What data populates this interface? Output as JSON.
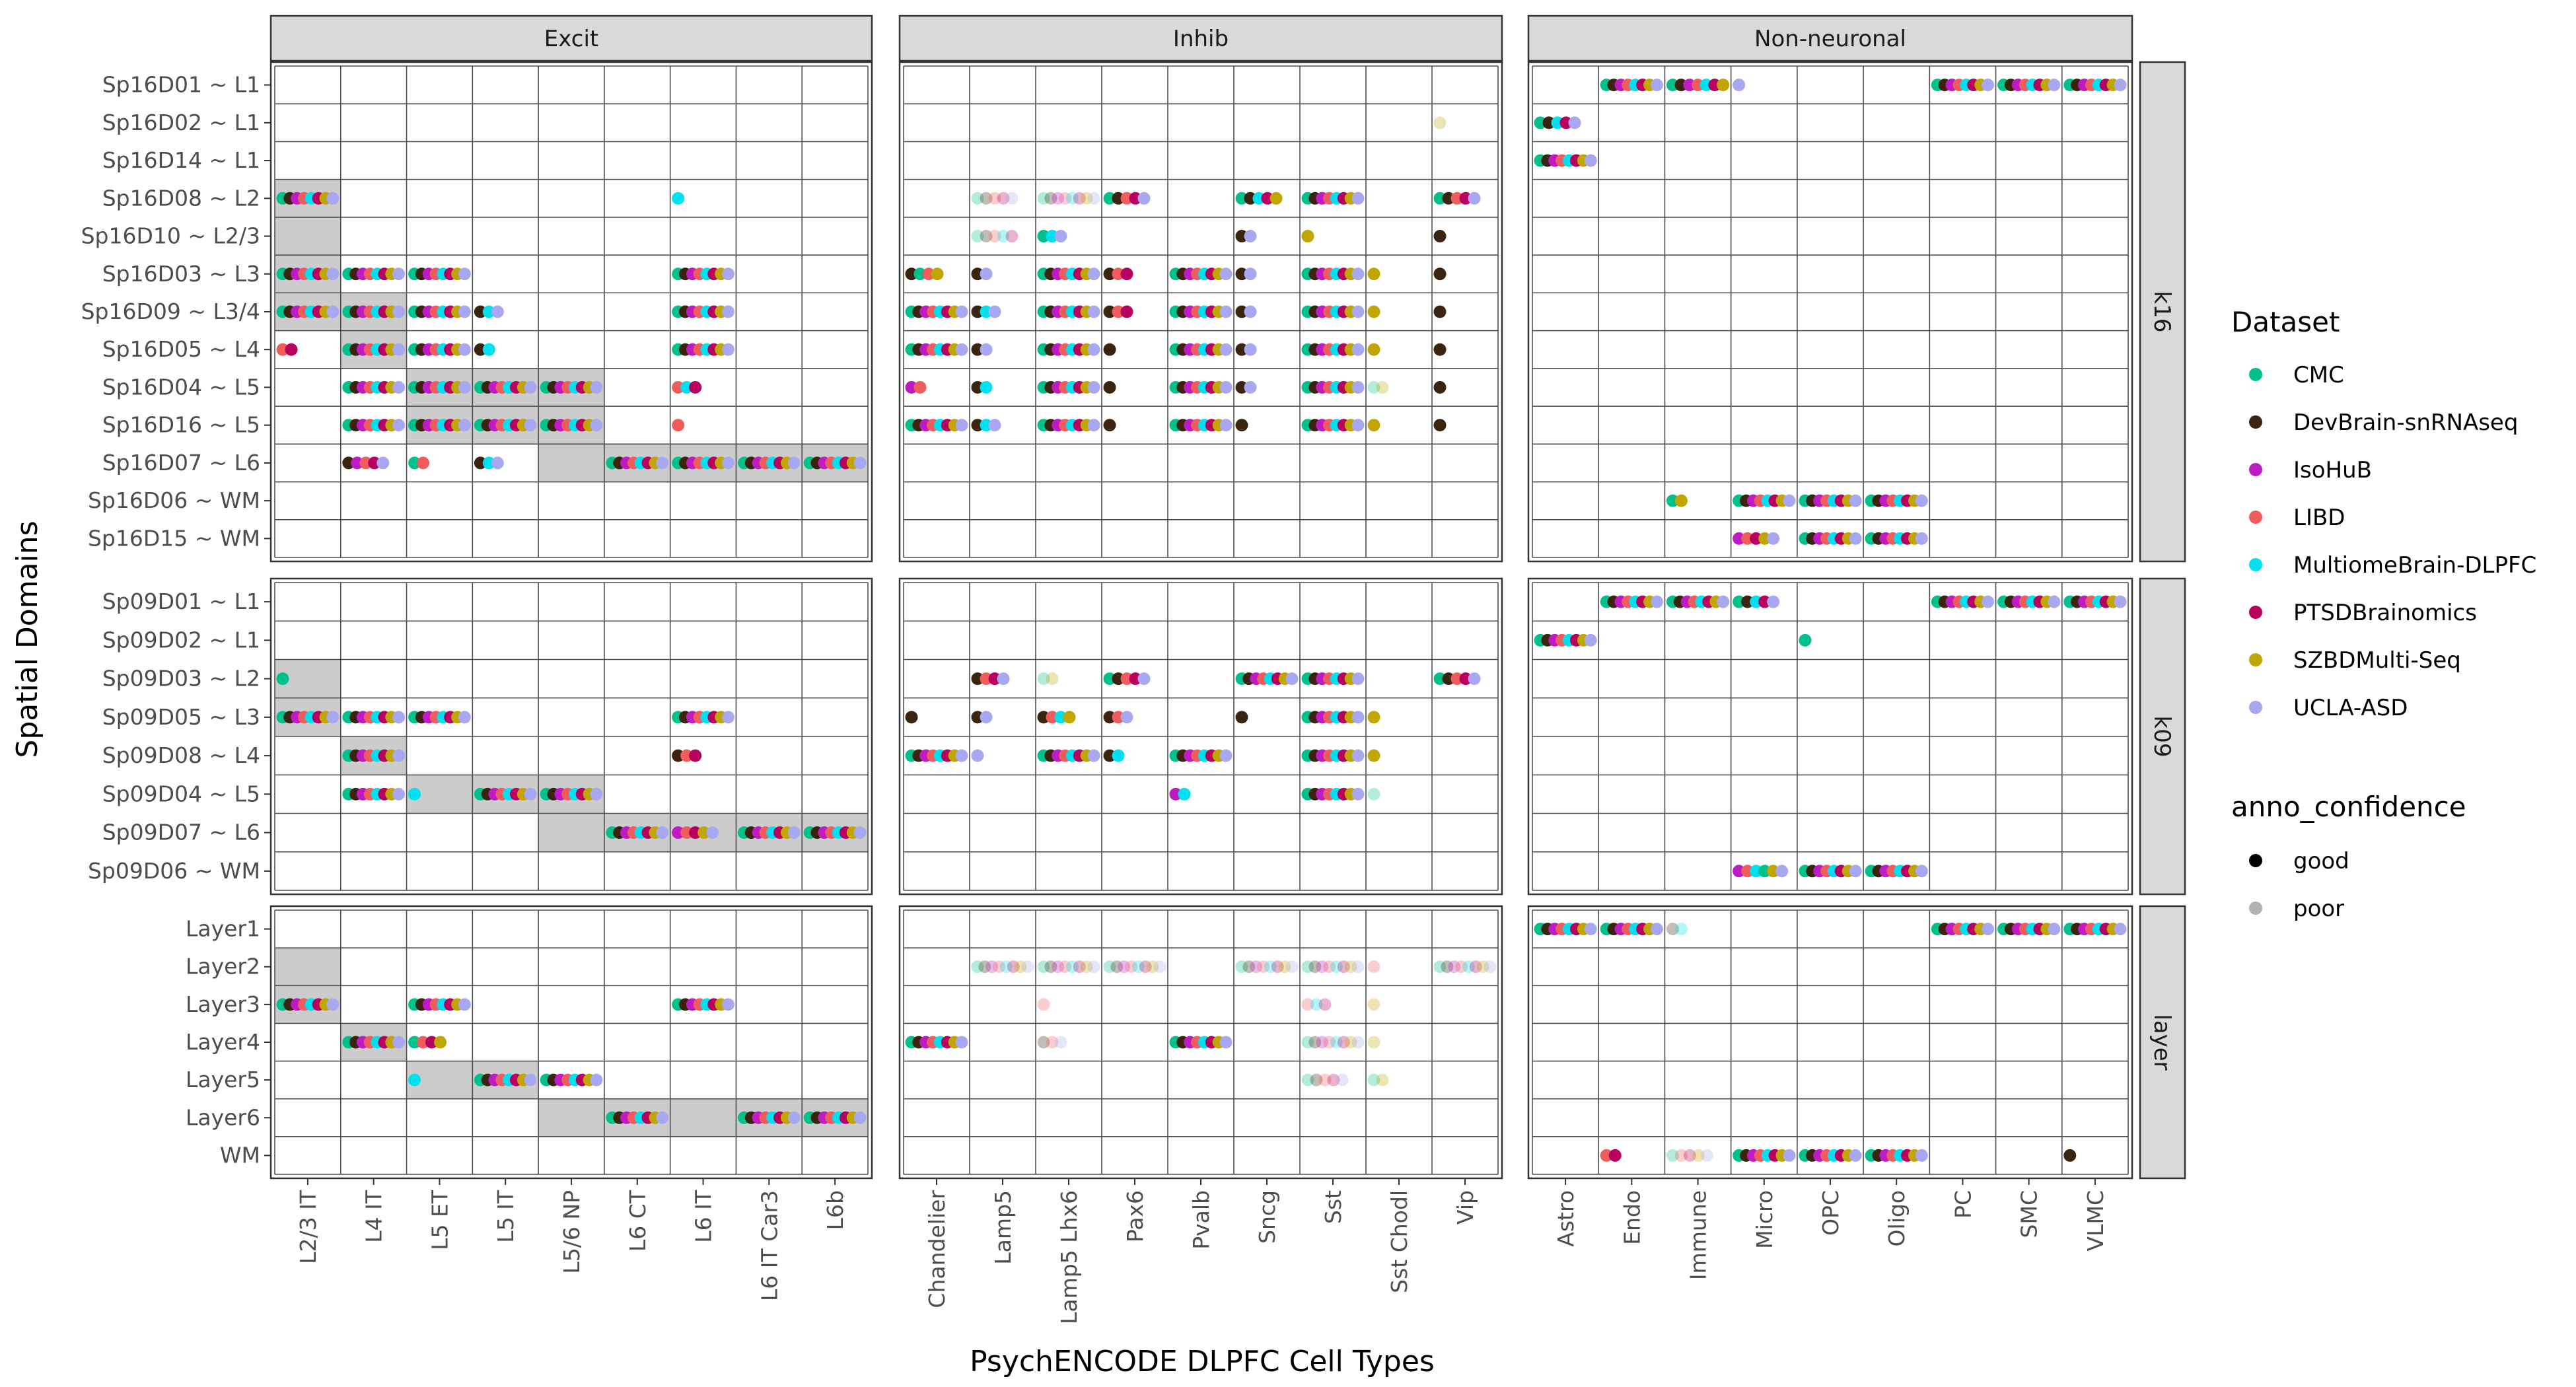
{
  "chart_data": {
    "type": "scatter",
    "xlabel": "PsychENCODE DLPFC Cell Types",
    "ylabel": "Spatial Domains",
    "column_facets": [
      {
        "label": "Excit",
        "categories": [
          "L2/3 IT",
          "L4 IT",
          "L5 ET",
          "L5 IT",
          "L5/6 NP",
          "L6 CT",
          "L6 IT",
          "L6 IT Car3",
          "L6b"
        ]
      },
      {
        "label": "Inhib",
        "categories": [
          "Chandelier",
          "Lamp5",
          "Lamp5 Lhx6",
          "Pax6",
          "Pvalb",
          "Sncg",
          "Sst",
          "Sst Chodl",
          "Vip"
        ]
      },
      {
        "label": "Non-neuronal",
        "categories": [
          "Astro",
          "Endo",
          "Immune",
          "Micro",
          "OPC",
          "Oligo",
          "PC",
          "SMC",
          "VLMC"
        ]
      }
    ],
    "row_facets": [
      {
        "label": "k16",
        "rows": [
          "Sp16D01 ~ L1",
          "Sp16D02 ~ L1",
          "Sp16D14 ~ L1",
          "Sp16D08 ~ L2",
          "Sp16D10 ~ L2/3",
          "Sp16D03 ~ L3",
          "Sp16D09 ~ L3/4",
          "Sp16D05 ~ L4",
          "Sp16D04 ~ L5",
          "Sp16D16 ~ L5",
          "Sp16D07 ~ L6",
          "Sp16D06 ~ WM",
          "Sp16D15 ~ WM"
        ]
      },
      {
        "label": "k09",
        "rows": [
          "Sp09D01 ~ L1",
          "Sp09D02 ~ L1",
          "Sp09D03 ~ L2",
          "Sp09D05 ~ L3",
          "Sp09D08 ~ L4",
          "Sp09D04 ~ L5",
          "Sp09D07 ~ L6",
          "Sp09D06 ~ WM"
        ]
      },
      {
        "label": "layer",
        "rows": [
          "Layer1",
          "Layer2",
          "Layer3",
          "Layer4",
          "Layer5",
          "Layer6",
          "WM"
        ]
      }
    ],
    "datasets": [
      {
        "name": "CMC",
        "color": "#00C08B"
      },
      {
        "name": "DevBrain-snRNAseq",
        "color": "#3A2410"
      },
      {
        "name": "IsoHuB",
        "color": "#BE1BC2"
      },
      {
        "name": "LIBD",
        "color": "#F05C5C"
      },
      {
        "name": "MultiomeBrain-DLPFC",
        "color": "#00E1F0"
      },
      {
        "name": "PTSDBrainomics",
        "color": "#B8005E"
      },
      {
        "name": "SZBDMulti-Seq",
        "color": "#C1A500"
      },
      {
        "name": "UCLA-ASD",
        "color": "#A8A8F0"
      }
    ],
    "confidence_levels": [
      {
        "name": "good",
        "opacity": 1.0
      },
      {
        "name": "poor",
        "opacity": 0.3
      }
    ],
    "legend": {
      "position": "right",
      "dataset_title": "Dataset",
      "confidence_title": "anno_confidence"
    },
    "shaded_cells": [
      [
        "k16",
        "Sp16D08 ~ L2",
        "L2/3 IT"
      ],
      [
        "k16",
        "Sp16D10 ~ L2/3",
        "L2/3 IT"
      ],
      [
        "k16",
        "Sp16D03 ~ L3",
        "L2/3 IT"
      ],
      [
        "k16",
        "Sp16D09 ~ L3/4",
        "L2/3 IT"
      ],
      [
        "k16",
        "Sp16D09 ~ L3/4",
        "L4 IT"
      ],
      [
        "k16",
        "Sp16D05 ~ L4",
        "L4 IT"
      ],
      [
        "k16",
        "Sp16D04 ~ L5",
        "L5 ET"
      ],
      [
        "k16",
        "Sp16D16 ~ L5",
        "L5 ET"
      ],
      [
        "k16",
        "Sp16D04 ~ L5",
        "L5 IT"
      ],
      [
        "k16",
        "Sp16D16 ~ L5",
        "L5 IT"
      ],
      [
        "k16",
        "Sp16D04 ~ L5",
        "L5/6 NP"
      ],
      [
        "k16",
        "Sp16D16 ~ L5",
        "L5/6 NP"
      ],
      [
        "k16",
        "Sp16D07 ~ L6",
        "L5/6 NP"
      ],
      [
        "k16",
        "Sp16D07 ~ L6",
        "L6 CT"
      ],
      [
        "k16",
        "Sp16D07 ~ L6",
        "L6 IT"
      ],
      [
        "k16",
        "Sp16D07 ~ L6",
        "L6 IT Car3"
      ],
      [
        "k16",
        "Sp16D07 ~ L6",
        "L6b"
      ],
      [
        "k09",
        "Sp09D03 ~ L2",
        "L2/3 IT"
      ],
      [
        "k09",
        "Sp09D05 ~ L3",
        "L2/3 IT"
      ],
      [
        "k09",
        "Sp09D08 ~ L4",
        "L4 IT"
      ],
      [
        "k09",
        "Sp09D04 ~ L5",
        "L5 ET"
      ],
      [
        "k09",
        "Sp09D04 ~ L5",
        "L5 IT"
      ],
      [
        "k09",
        "Sp09D04 ~ L5",
        "L5/6 NP"
      ],
      [
        "k09",
        "Sp09D07 ~ L6",
        "L5/6 NP"
      ],
      [
        "k09",
        "Sp09D07 ~ L6",
        "L6 CT"
      ],
      [
        "k09",
        "Sp09D07 ~ L6",
        "L6 IT"
      ],
      [
        "k09",
        "Sp09D07 ~ L6",
        "L6 IT Car3"
      ],
      [
        "k09",
        "Sp09D07 ~ L6",
        "L6b"
      ],
      [
        "layer",
        "Layer2",
        "L2/3 IT"
      ],
      [
        "layer",
        "Layer3",
        "L2/3 IT"
      ],
      [
        "layer",
        "Layer4",
        "L4 IT"
      ],
      [
        "layer",
        "Layer5",
        "L5 ET"
      ],
      [
        "layer",
        "Layer5",
        "L5 IT"
      ],
      [
        "layer",
        "Layer6",
        "L5/6 NP"
      ],
      [
        "layer",
        "Layer6",
        "L6 CT"
      ],
      [
        "layer",
        "Layer6",
        "L6 IT"
      ],
      [
        "layer",
        "Layer6",
        "L6 IT Car3"
      ],
      [
        "layer",
        "Layer6",
        "L6b"
      ]
    ],
    "points_format": "facet | row | celltype | dataset indices (0-7 in datasets order, ordered as drawn left to right) | confidence",
    "points": [
      "k16|Sp16D01 ~ L1|Endo|0,1,2,3,4,5,6,7|good",
      "k16|Sp16D01 ~ L1|Immune|0,1,2,3,4,5,6|good",
      "k16|Sp16D01 ~ L1|Micro|7|good",
      "k16|Sp16D01 ~ L1|PC|0,1,2,3,4,5,6,7|good",
      "k16|Sp16D01 ~ L1|SMC|0,1,2,3,4,5,6,7|good",
      "k16|Sp16D01 ~ L1|VLMC|0,1,2,3,4,5,6,7|good",
      "k16|Sp16D02 ~ L1|Vip|6|poor",
      "k16|Sp16D02 ~ L1|Astro|0,1,4,5,7|good",
      "k16|Sp16D14 ~ L1|Astro|0,1,2,3,4,5,6,7|good",
      "k16|Sp16D08 ~ L2|L2/3 IT|0,1,2,3,4,5,6,7|good",
      "k16|Sp16D08 ~ L2|L6 IT|4|good",
      "k16|Sp16D08 ~ L2|Lamp5|0,1,3,5,7|poor",
      "k16|Sp16D08 ~ L2|Lamp5 Lhx6|0,1,2,3,4,5,6,7|poor",
      "k16|Sp16D08 ~ L2|Pax6|0,1,3,5,7|good",
      "k16|Sp16D08 ~ L2|Sncg|0,1,4,5,6|good",
      "k16|Sp16D08 ~ L2|Sst|0,1,2,3,4,5,6,7|good",
      "k16|Sp16D08 ~ L2|Vip|0,1,3,5,7|good",
      "k16|Sp16D10 ~ L2/3|Lamp5|0,1,3,4,5|poor",
      "k16|Sp16D10 ~ L2/3|Lamp5 Lhx6|0,4,7|good",
      "k16|Sp16D10 ~ L2/3|Sncg|1,7|good",
      "k16|Sp16D10 ~ L2/3|Sst|6|good",
      "k16|Sp16D10 ~ L2/3|Vip|1|good",
      "k16|Sp16D03 ~ L3|L2/3 IT|0,1,2,3,4,5,6,7|good",
      "k16|Sp16D03 ~ L3|L4 IT|0,1,2,3,4,5,6,7|good",
      "k16|Sp16D03 ~ L3|L5 ET|0,1,2,3,4,5,6,7|good",
      "k16|Sp16D03 ~ L3|L6 IT|0,1,2,3,4,5,6,7|good",
      "k16|Sp16D03 ~ L3|Chandelier|1,0,3,6|good",
      "k16|Sp16D03 ~ L3|Lamp5|1,7|good",
      "k16|Sp16D03 ~ L3|Lamp5 Lhx6|0,1,2,3,4,5,6,7|good",
      "k16|Sp16D03 ~ L3|Pax6|1,3,5|good",
      "k16|Sp16D03 ~ L3|Pvalb|0,1,2,3,4,5,6,7|good",
      "k16|Sp16D03 ~ L3|Sncg|1,7|good",
      "k16|Sp16D03 ~ L3|Sst|0,1,2,3,4,5,6,7|good",
      "k16|Sp16D03 ~ L3|Sst Chodl|6|good",
      "k16|Sp16D03 ~ L3|Vip|1|good",
      "k16|Sp16D09 ~ L3/4|L2/3 IT|0,1,2,3,4,5,6,7|good",
      "k16|Sp16D09 ~ L3/4|L4 IT|0,1,2,3,4,5,6,7|good",
      "k16|Sp16D09 ~ L3/4|L5 ET|0,1,2,3,4,5,6,7|good",
      "k16|Sp16D09 ~ L3/4|L5 IT|1,4,7|good",
      "k16|Sp16D09 ~ L3/4|L6 IT|0,1,2,3,4,5,6,7|good",
      "k16|Sp16D09 ~ L3/4|Chandelier|0,1,2,3,4,5,6,7|good",
      "k16|Sp16D09 ~ L3/4|Lamp5|1,4,7|good",
      "k16|Sp16D09 ~ L3/4|Lamp5 Lhx6|0,1,2,3,4,5,6,7|good",
      "k16|Sp16D09 ~ L3/4|Pax6|1,3,5|good",
      "k16|Sp16D09 ~ L3/4|Pvalb|0,1,2,3,4,5,6,7|good",
      "k16|Sp16D09 ~ L3/4|Sncg|1,7|good",
      "k16|Sp16D09 ~ L3/4|Sst|0,1,2,3,4,5,6,7|good",
      "k16|Sp16D09 ~ L3/4|Sst Chodl|6|good",
      "k16|Sp16D09 ~ L3/4|Vip|1|good",
      "k16|Sp16D05 ~ L4|L2/3 IT|3,5|good",
      "k16|Sp16D05 ~ L4|L4 IT|0,1,2,3,4,5,6,7|good",
      "k16|Sp16D05 ~ L4|L5 ET|0,1,2,3,4,5,6,7|good",
      "k16|Sp16D05 ~ L4|L5 IT|1,4|good",
      "k16|Sp16D05 ~ L4|L6 IT|0,1,2,3,4,5,6,7|good",
      "k16|Sp16D05 ~ L4|Chandelier|0,1,2,3,4,5,6,7|good",
      "k16|Sp16D05 ~ L4|Lamp5|1,7|good",
      "k16|Sp16D05 ~ L4|Lamp5 Lhx6|0,1,2,3,4,5,6,7|good",
      "k16|Sp16D05 ~ L4|Pax6|1|good",
      "k16|Sp16D05 ~ L4|Pvalb|0,1,2,3,4,5,6,7|good",
      "k16|Sp16D05 ~ L4|Sncg|1,7|good",
      "k16|Sp16D05 ~ L4|Sst|0,1,2,3,4,5,6,7|good",
      "k16|Sp16D05 ~ L4|Sst Chodl|6|good",
      "k16|Sp16D05 ~ L4|Vip|1|good",
      "k16|Sp16D04 ~ L5|L4 IT|0,1,2,3,4,5,6,7|good",
      "k16|Sp16D04 ~ L5|L5 ET|0,1,2,3,4,5,6,7|good",
      "k16|Sp16D04 ~ L5|L5 IT|0,1,2,3,4,5,6,7|good",
      "k16|Sp16D04 ~ L5|L5/6 NP|0,1,2,3,4,5,6,7|good",
      "k16|Sp16D04 ~ L5|L6 IT|3,4,5|good",
      "k16|Sp16D04 ~ L5|Chandelier|2,3|good",
      "k16|Sp16D04 ~ L5|Lamp5|1,4|good",
      "k16|Sp16D04 ~ L5|Lamp5 Lhx6|0,1,2,3,4,5,6,7|good",
      "k16|Sp16D04 ~ L5|Pax6|1|good",
      "k16|Sp16D04 ~ L5|Pvalb|0,1,2,3,4,5,6,7|good",
      "k16|Sp16D04 ~ L5|Sncg|1,7|good",
      "k16|Sp16D04 ~ L5|Sst|0,1,2,3,4,5,6,7|good",
      "k16|Sp16D04 ~ L5|Sst Chodl|0,6|poor",
      "k16|Sp16D04 ~ L5|Vip|1|good",
      "k16|Sp16D16 ~ L5|L4 IT|0,1,2,3,4,5,6,7|good",
      "k16|Sp16D16 ~ L5|L5 ET|0,1,2,3,4,5,6,7|good",
      "k16|Sp16D16 ~ L5|L5 IT|0,1,2,3,4,5,6,7|good",
      "k16|Sp16D16 ~ L5|L5/6 NP|0,1,2,3,4,5,6,7|good",
      "k16|Sp16D16 ~ L5|L6 IT|3|good",
      "k16|Sp16D16 ~ L5|Chandelier|0,1,2,3,4,5,6,7|good",
      "k16|Sp16D16 ~ L5|Lamp5|1,4,7|good",
      "k16|Sp16D16 ~ L5|Lamp5 Lhx6|0,1,2,3,4,5,6,7|good",
      "k16|Sp16D16 ~ L5|Pax6|1|good",
      "k16|Sp16D16 ~ L5|Pvalb|0,1,2,3,4,5,6,7|good",
      "k16|Sp16D16 ~ L5|Sncg|1|good",
      "k16|Sp16D16 ~ L5|Sst|0,1,2,3,4,5,6,7|good",
      "k16|Sp16D16 ~ L5|Sst Chodl|6|good",
      "k16|Sp16D16 ~ L5|Vip|1|good",
      "k16|Sp16D07 ~ L6|L4 IT|1,2,3,5,7|good",
      "k16|Sp16D07 ~ L6|L5 ET|0,3|good",
      "k16|Sp16D07 ~ L6|L5 IT|1,4,7|good",
      "k16|Sp16D07 ~ L6|L6 CT|0,1,2,3,4,5,6,7|good",
      "k16|Sp16D07 ~ L6|L6 IT|0,1,2,3,4,5,6,7|good",
      "k16|Sp16D07 ~ L6|L6 IT Car3|0,1,2,3,4,5,6,7|good",
      "k16|Sp16D07 ~ L6|L6b|0,1,2,3,4,5,6,7|good",
      "k16|Sp16D06 ~ WM|Immune|0,6|good",
      "k16|Sp16D06 ~ WM|Micro|0,1,2,3,4,5,6,7|good",
      "k16|Sp16D06 ~ WM|OPC|0,1,2,3,4,5,6,7|good",
      "k16|Sp16D06 ~ WM|Oligo|0,1,2,3,4,5,6,7|good",
      "k16|Sp16D15 ~ WM|Micro|2,3,5,6,7|good",
      "k16|Sp16D15 ~ WM|OPC|0,1,2,3,4,5,6,7|good",
      "k16|Sp16D15 ~ WM|Oligo|0,1,2,3,4,5,6,7|good",
      "k09|Sp09D01 ~ L1|Endo|0,1,2,3,4,5,6,7|good",
      "k09|Sp09D01 ~ L1|Immune|0,1,2,3,4,5,6,7|good",
      "k09|Sp09D01 ~ L1|Micro|0,1,4,5,7|good",
      "k09|Sp09D01 ~ L1|PC|0,1,2,3,4,5,6,7|good",
      "k09|Sp09D01 ~ L1|SMC|0,1,2,3,4,5,6,7|good",
      "k09|Sp09D01 ~ L1|VLMC|0,1,2,3,4,5,6,7|good",
      "k09|Sp09D02 ~ L1|Astro|0,1,2,3,4,5,6,7|good",
      "k09|Sp09D02 ~ L1|OPC|0|good",
      "k09|Sp09D03 ~ L2|L2/3 IT|0|good",
      "k09|Sp09D03 ~ L2|Lamp5|1,3,5,7|good",
      "k09|Sp09D03 ~ L2|Lamp5 Lhx6|0,6|poor",
      "k09|Sp09D03 ~ L2|Pax6|0,1,3,5,7|good",
      "k09|Sp09D03 ~ L2|Sncg|0,1,2,3,4,5,6,7|good",
      "k09|Sp09D03 ~ L2|Sst|0,1,2,3,4,5,6,7|good",
      "k09|Sp09D03 ~ L2|Vip|0,1,3,5,7|good",
      "k09|Sp09D05 ~ L3|L2/3 IT|0,1,2,3,4,5,6,7|good",
      "k09|Sp09D05 ~ L3|L4 IT|0,1,2,3,4,5,6,7|good",
      "k09|Sp09D05 ~ L3|L5 ET|0,1,2,3,4,5,6,7|good",
      "k09|Sp09D05 ~ L3|L6 IT|0,1,2,3,4,5,6,7|good",
      "k09|Sp09D05 ~ L3|Chandelier|1|good",
      "k09|Sp09D05 ~ L3|Lamp5|1,7|good",
      "k09|Sp09D05 ~ L3|Lamp5 Lhx6|1,3,4,6|good",
      "k09|Sp09D05 ~ L3|Pax6|1,3,7|good",
      "k09|Sp09D05 ~ L3|Sncg|1|good",
      "k09|Sp09D05 ~ L3|Sst|0,1,2,3,4,5,6,7|good",
      "k09|Sp09D05 ~ L3|Sst Chodl|6|good",
      "k09|Sp09D08 ~ L4|L4 IT|0,1,2,3,4,5,6,7|good",
      "k09|Sp09D08 ~ L4|L6 IT|1,3,5|good",
      "k09|Sp09D08 ~ L4|Chandelier|0,1,2,3,4,5,6,7|good",
      "k09|Sp09D08 ~ L4|Lamp5|7|good",
      "k09|Sp09D08 ~ L4|Lamp5 Lhx6|0,1,2,3,4,5,6,7|good",
      "k09|Sp09D08 ~ L4|Pax6|1,4|good",
      "k09|Sp09D08 ~ L4|Pvalb|0,1,2,3,4,5,6,7|good",
      "k09|Sp09D08 ~ L4|Sst|0,1,2,3,4,5,6,7|good",
      "k09|Sp09D08 ~ L4|Sst Chodl|6|good",
      "k09|Sp09D04 ~ L5|L4 IT|0,1,2,3,4,5,6,7|good",
      "k09|Sp09D04 ~ L5|L5 ET|4|good",
      "k09|Sp09D04 ~ L5|L5 IT|0,1,2,3,4,5,6,7|good",
      "k09|Sp09D04 ~ L5|L5/6 NP|0,1,2,3,4,5,6,7|good",
      "k09|Sp09D04 ~ L5|Pvalb|2,4|good",
      "k09|Sp09D04 ~ L5|Sst|0,1,2,3,4,5,6,7|good",
      "k09|Sp09D04 ~ L5|Sst Chodl|0|poor",
      "k09|Sp09D07 ~ L6|L6 CT|0,1,2,3,4,5,6,7|good",
      "k09|Sp09D07 ~ L6|L6 IT|2,3,5,6,7|good",
      "k09|Sp09D07 ~ L6|L6 IT Car3|0,1,2,3,4,5,6,7|good",
      "k09|Sp09D07 ~ L6|L6b|0,1,2,3,4,5,6,7|good",
      "k09|Sp09D06 ~ WM|Micro|2,3,4,0,6,7|good",
      "k09|Sp09D06 ~ WM|OPC|0,1,2,3,4,5,6,7|good",
      "k09|Sp09D06 ~ WM|Oligo|0,1,2,3,4,5,6,7|good",
      "layer|Layer1|Astro|0,1,2,3,4,5,6,7|good",
      "layer|Layer1|Endo|0,1,2,3,4,5,6,7|good",
      "layer|Layer1|Immune|1,4|poor",
      "layer|Layer1|PC|0,1,2,3,4,5,6,7|good",
      "layer|Layer1|SMC|0,1,2,3,4,5,6,7|good",
      "layer|Layer1|VLMC|0,1,2,3,4,5,6,7|good",
      "layer|Layer2|Lamp5|0,1,2,3,4,5,6,7|poor",
      "layer|Layer2|Lamp5 Lhx6|0,1,2,3,4,5,6,7|poor",
      "layer|Layer2|Pax6|0,1,2,3,4,5,6,7|poor",
      "layer|Layer2|Sncg|0,1,2,3,4,5,6,7|poor",
      "layer|Layer2|Sst|0,1,2,3,4,5,6,7|poor",
      "layer|Layer2|Sst Chodl|3|poor",
      "layer|Layer2|Vip|0,1,2,3,4,5,6,7|poor",
      "layer|Layer3|L2/3 IT|0,1,2,3,4,5,6,7|good",
      "layer|Layer3|L5 ET|0,1,2,3,4,5,6,7|good",
      "layer|Layer3|L6 IT|0,1,2,3,4,5,6,7|good",
      "layer|Layer3|Lamp5 Lhx6|3|poor",
      "layer|Layer3|Sst|3,4,5|poor",
      "layer|Layer3|Sst Chodl|6|poor",
      "layer|Layer4|L4 IT|0,1,2,3,4,5,6,7|good",
      "layer|Layer4|L5 ET|0,3,5,6|good",
      "layer|Layer4|Chandelier|0,1,2,3,4,5,6,7|good",
      "layer|Layer4|Lamp5 Lhx6|1,3,7|poor",
      "layer|Layer4|Pvalb|0,1,2,3,4,5,6,7|good",
      "layer|Layer4|Sst|0,1,2,3,4,5,6,7|poor",
      "layer|Layer4|Sst Chodl|6|poor",
      "layer|Layer5|L5 ET|4|good",
      "layer|Layer5|L5 IT|0,1,2,3,4,5,6,7|good",
      "layer|Layer5|L5/6 NP|0,1,2,3,4,5,6,7|good",
      "layer|Layer5|Sst|0,1,3,5,7|poor",
      "layer|Layer5|Sst Chodl|0,6|poor",
      "layer|Layer6|L6 CT|0,1,2,3,4,5,6,7|good",
      "layer|Layer6|L6 IT Car3|0,1,2,3,4,5,6,7|good",
      "layer|Layer6|L6b|0,1,2,3,4,5,6,7|good",
      "layer|WM|Endo|3,5|good",
      "layer|WM|Immune|0,3,5,6,7|poor",
      "layer|WM|Micro|0,1,2,3,4,5,6,7|good",
      "layer|WM|OPC|0,1,2,3,4,5,6,7|good",
      "layer|WM|Oligo|0,1,2,3,4,5,6,7|good",
      "layer|WM|VLMC|1|good"
    ]
  }
}
